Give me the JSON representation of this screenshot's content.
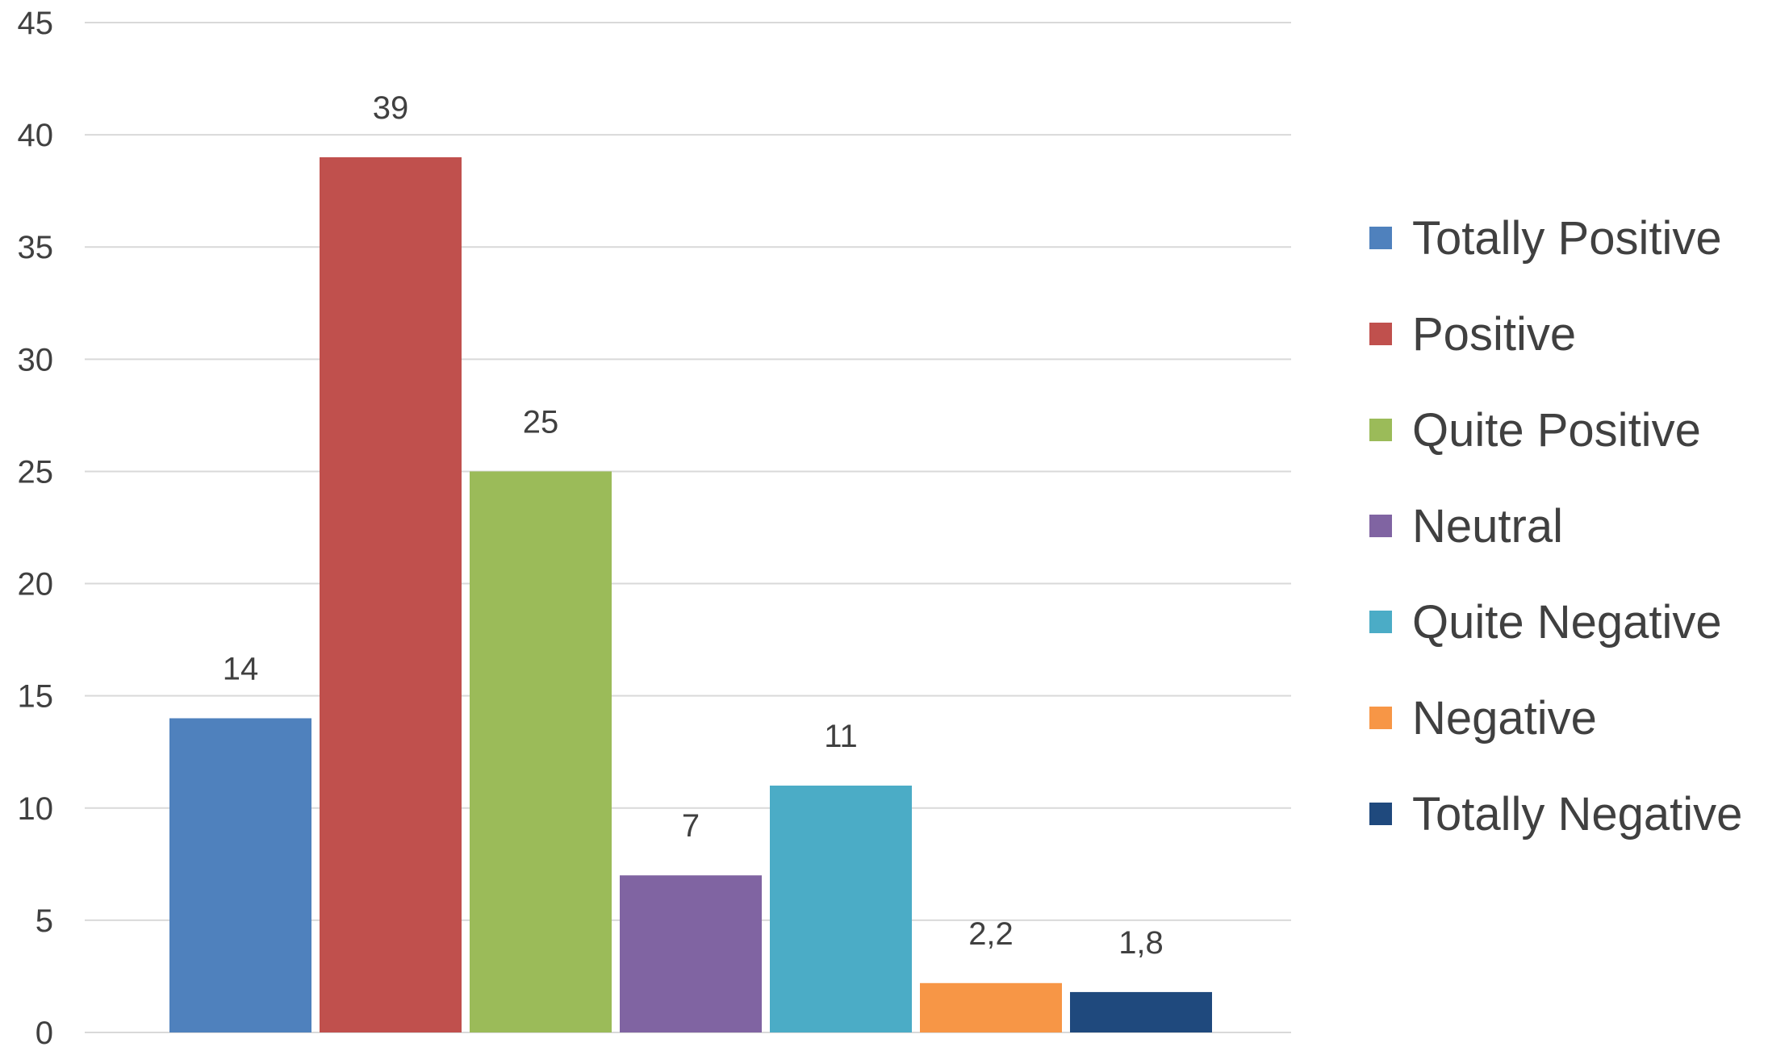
{
  "chart_data": {
    "type": "bar",
    "categories": [
      "Totally Positive",
      "Positive",
      "Quite Positive",
      "Neutral",
      "Quite Negative",
      "Negative",
      "Totally Negative"
    ],
    "values": [
      14,
      39,
      25,
      7,
      11,
      2.2,
      1.8
    ],
    "data_labels": [
      "14",
      "39",
      "25",
      "7",
      "11",
      "2,2",
      "1,8"
    ],
    "colors": [
      "#4f81bd",
      "#c0504d",
      "#9bbb59",
      "#8064a2",
      "#4bacc6",
      "#f79646",
      "#1f497d"
    ],
    "ylim": [
      0,
      45
    ],
    "yticks": [
      "0",
      "5",
      "10",
      "15",
      "20",
      "25",
      "30",
      "35",
      "40",
      "45"
    ],
    "grid": true,
    "legend_position": "right",
    "title": "",
    "xlabel": "",
    "ylabel": ""
  }
}
